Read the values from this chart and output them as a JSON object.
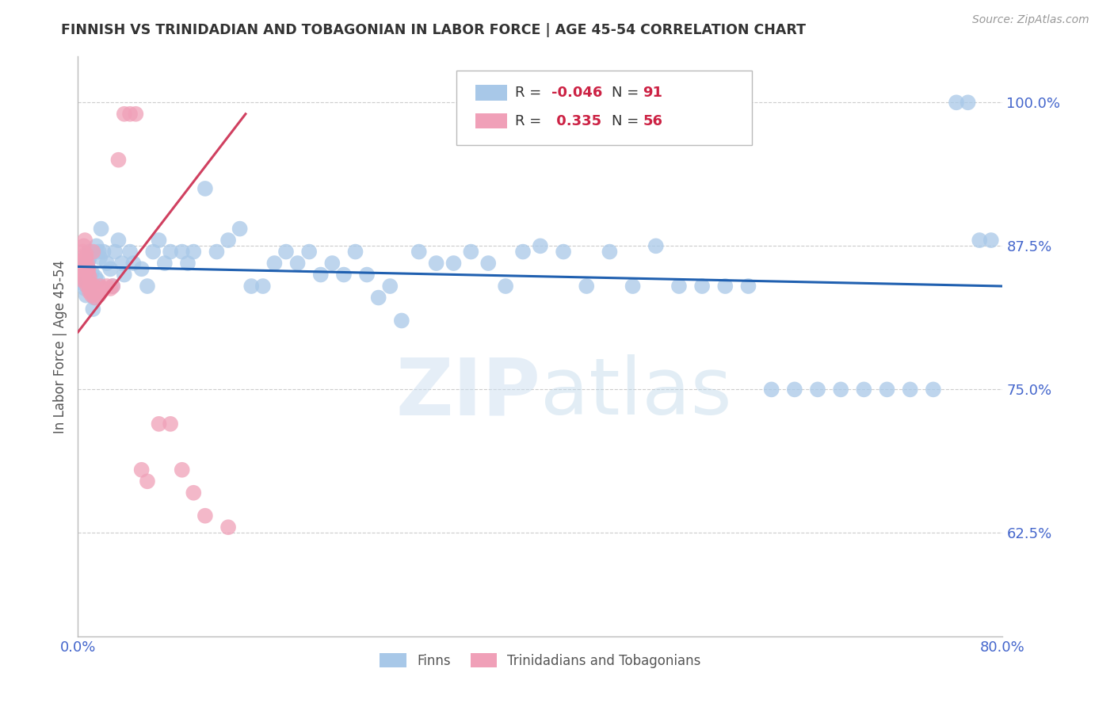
{
  "title": "FINNISH VS TRINIDADIAN AND TOBAGONIAN IN LABOR FORCE | AGE 45-54 CORRELATION CHART",
  "source": "Source: ZipAtlas.com",
  "ylabel": "In Labor Force | Age 45-54",
  "xlim": [
    0.0,
    0.8
  ],
  "ylim": [
    0.535,
    1.04
  ],
  "yticks": [
    0.625,
    0.75,
    0.875,
    1.0
  ],
  "ytick_labels": [
    "62.5%",
    "75.0%",
    "87.5%",
    "100.0%"
  ],
  "xticks": [
    0.0,
    0.1,
    0.2,
    0.3,
    0.4,
    0.5,
    0.6,
    0.7,
    0.8
  ],
  "xtick_labels": [
    "0.0%",
    "",
    "",
    "",
    "",
    "",
    "",
    "",
    "80.0%"
  ],
  "legend_label1": "Finns",
  "legend_label2": "Trinidadians and Tobagonians",
  "R_finns": -0.046,
  "N_finns": 91,
  "R_tnt": 0.335,
  "N_tnt": 56,
  "color_finns": "#a8c8e8",
  "color_tnt": "#f0a0b8",
  "line_color_finns": "#2060b0",
  "line_color_tnt": "#d04060",
  "watermark": "ZIPatlas",
  "background_color": "#ffffff",
  "grid_color": "#cccccc",
  "axis_color": "#4466cc",
  "title_color": "#333333",
  "finns_x": [
    0.001,
    0.002,
    0.003,
    0.003,
    0.004,
    0.005,
    0.005,
    0.006,
    0.007,
    0.007,
    0.008,
    0.008,
    0.009,
    0.01,
    0.01,
    0.011,
    0.012,
    0.013,
    0.014,
    0.015,
    0.016,
    0.017,
    0.018,
    0.019,
    0.02,
    0.022,
    0.025,
    0.028,
    0.03,
    0.032,
    0.035,
    0.038,
    0.04,
    0.045,
    0.048,
    0.055,
    0.06,
    0.065,
    0.07,
    0.075,
    0.08,
    0.09,
    0.095,
    0.1,
    0.11,
    0.12,
    0.13,
    0.14,
    0.15,
    0.16,
    0.17,
    0.18,
    0.19,
    0.2,
    0.21,
    0.22,
    0.23,
    0.24,
    0.25,
    0.26,
    0.27,
    0.28,
    0.295,
    0.31,
    0.325,
    0.34,
    0.355,
    0.37,
    0.385,
    0.4,
    0.42,
    0.44,
    0.46,
    0.48,
    0.5,
    0.52,
    0.54,
    0.56,
    0.58,
    0.6,
    0.62,
    0.64,
    0.66,
    0.68,
    0.7,
    0.72,
    0.74,
    0.76,
    0.77,
    0.78,
    0.79
  ],
  "finns_y": [
    0.845,
    0.845,
    0.85,
    0.845,
    0.85,
    0.855,
    0.842,
    0.838,
    0.86,
    0.832,
    0.855,
    0.858,
    0.862,
    0.87,
    0.865,
    0.84,
    0.852,
    0.82,
    0.83,
    0.848,
    0.875,
    0.845,
    0.87,
    0.865,
    0.89,
    0.87,
    0.86,
    0.855,
    0.84,
    0.87,
    0.88,
    0.86,
    0.85,
    0.87,
    0.86,
    0.855,
    0.84,
    0.87,
    0.88,
    0.86,
    0.87,
    0.87,
    0.86,
    0.87,
    0.925,
    0.87,
    0.88,
    0.89,
    0.84,
    0.84,
    0.86,
    0.87,
    0.86,
    0.87,
    0.85,
    0.86,
    0.85,
    0.87,
    0.85,
    0.83,
    0.84,
    0.81,
    0.87,
    0.86,
    0.86,
    0.87,
    0.86,
    0.84,
    0.87,
    0.875,
    0.87,
    0.84,
    0.87,
    0.84,
    0.875,
    0.84,
    0.84,
    0.84,
    0.84,
    0.75,
    0.75,
    0.75,
    0.75,
    0.75,
    0.75,
    0.75,
    0.75,
    1.0,
    1.0,
    0.88,
    0.88
  ],
  "tnt_x": [
    0.001,
    0.001,
    0.002,
    0.002,
    0.003,
    0.003,
    0.004,
    0.004,
    0.004,
    0.005,
    0.005,
    0.005,
    0.006,
    0.006,
    0.006,
    0.007,
    0.007,
    0.007,
    0.008,
    0.008,
    0.008,
    0.009,
    0.009,
    0.01,
    0.01,
    0.01,
    0.011,
    0.011,
    0.012,
    0.012,
    0.013,
    0.013,
    0.014,
    0.015,
    0.015,
    0.016,
    0.017,
    0.018,
    0.019,
    0.02,
    0.022,
    0.025,
    0.028,
    0.03,
    0.035,
    0.04,
    0.045,
    0.05,
    0.055,
    0.06,
    0.07,
    0.08,
    0.09,
    0.1,
    0.11,
    0.13
  ],
  "tnt_y": [
    0.85,
    0.855,
    0.855,
    0.86,
    0.858,
    0.862,
    0.87,
    0.855,
    0.845,
    0.86,
    0.862,
    0.875,
    0.88,
    0.845,
    0.855,
    0.868,
    0.858,
    0.865,
    0.855,
    0.86,
    0.84,
    0.85,
    0.855,
    0.835,
    0.848,
    0.838,
    0.838,
    0.842,
    0.835,
    0.832,
    0.84,
    0.87,
    0.84,
    0.838,
    0.83,
    0.838,
    0.835,
    0.832,
    0.84,
    0.835,
    0.838,
    0.84,
    0.838,
    0.84,
    0.95,
    0.99,
    0.99,
    0.99,
    0.68,
    0.67,
    0.72,
    0.72,
    0.68,
    0.66,
    0.64,
    0.63
  ],
  "finn_line_x0": 0.0,
  "finn_line_x1": 0.8,
  "finn_line_y0": 0.857,
  "finn_line_y1": 0.84,
  "tnt_line_x0": 0.0,
  "tnt_line_x1": 0.145,
  "tnt_line_y0": 0.8,
  "tnt_line_y1": 0.99
}
